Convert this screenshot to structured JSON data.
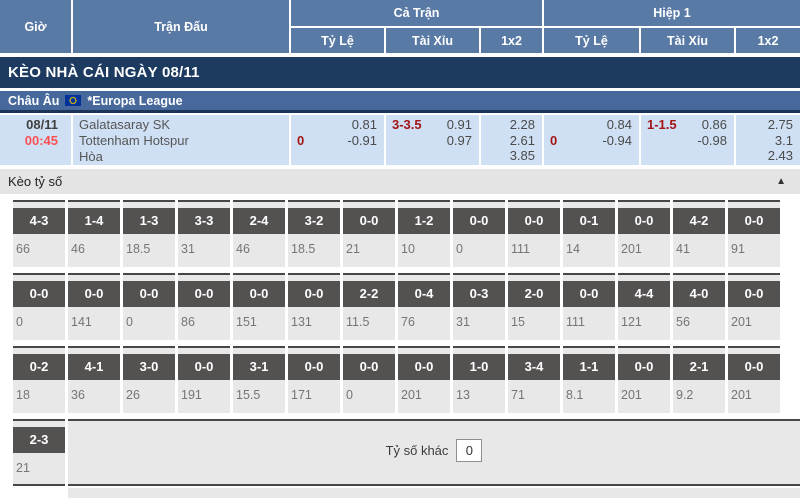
{
  "header": {
    "time": "Giờ",
    "match": "Trận Đấu",
    "full_match": "Cả Trận",
    "first_half": "Hiệp 1",
    "handicap": "Tỷ Lệ",
    "over_under": "Tài Xỉu",
    "one_x_two": "1x2"
  },
  "banner": {
    "title": "KÈO NHÀ CÁI NGÀY 08/11"
  },
  "league": {
    "region": "Châu Âu",
    "name": "*Europa League",
    "flag": "eu-flag-icon"
  },
  "match": {
    "date": "08/11",
    "time": "00:45",
    "home_team": "Galatasaray SK",
    "away_team": "Tottenham Hotspur",
    "draw_label": "Hòa",
    "full_time": {
      "handicap": {
        "line": "0",
        "home_odds": "0.81",
        "away_odds": "-0.91"
      },
      "over_under": {
        "line": "3-3.5",
        "over_odds": "0.91",
        "under_odds": "0.97"
      },
      "one_x_two": {
        "home": "2.28",
        "away": "2.61",
        "draw": "3.85"
      }
    },
    "first_half": {
      "handicap": {
        "line": "0",
        "home_odds": "0.84",
        "away_odds": "-0.94"
      },
      "over_under": {
        "line": "1-1.5",
        "over_odds": "0.86",
        "under_odds": "-0.98"
      },
      "one_x_two": {
        "home": "2.75",
        "away": "3.1",
        "draw": "2.43"
      }
    }
  },
  "score_section": {
    "title": "Kèo tỷ số",
    "other_label": "Tỷ số khác",
    "other_value": "0",
    "rows": [
      [
        {
          "score": "4-3",
          "odds": "66"
        },
        {
          "score": "1-4",
          "odds": "46"
        },
        {
          "score": "1-3",
          "odds": "18.5"
        },
        {
          "score": "3-3",
          "odds": "31"
        },
        {
          "score": "2-4",
          "odds": "46"
        },
        {
          "score": "3-2",
          "odds": "18.5"
        },
        {
          "score": "0-0",
          "odds": "21"
        },
        {
          "score": "1-2",
          "odds": "10"
        },
        {
          "score": "0-0",
          "odds": "0"
        },
        {
          "score": "0-0",
          "odds": "111"
        },
        {
          "score": "0-1",
          "odds": "14"
        },
        {
          "score": "0-0",
          "odds": "201"
        },
        {
          "score": "4-2",
          "odds": "41"
        },
        {
          "score": "0-0",
          "odds": "91"
        }
      ],
      [
        {
          "score": "0-0",
          "odds": "0"
        },
        {
          "score": "0-0",
          "odds": "141"
        },
        {
          "score": "0-0",
          "odds": "0"
        },
        {
          "score": "0-0",
          "odds": "86"
        },
        {
          "score": "0-0",
          "odds": "151"
        },
        {
          "score": "0-0",
          "odds": "131"
        },
        {
          "score": "2-2",
          "odds": "11.5"
        },
        {
          "score": "0-4",
          "odds": "76"
        },
        {
          "score": "0-3",
          "odds": "31"
        },
        {
          "score": "2-0",
          "odds": "15"
        },
        {
          "score": "0-0",
          "odds": "111"
        },
        {
          "score": "4-4",
          "odds": "121"
        },
        {
          "score": "4-0",
          "odds": "56"
        },
        {
          "score": "0-0",
          "odds": "201"
        }
      ],
      [
        {
          "score": "0-2",
          "odds": "18"
        },
        {
          "score": "4-1",
          "odds": "36"
        },
        {
          "score": "3-0",
          "odds": "26"
        },
        {
          "score": "0-0",
          "odds": "191"
        },
        {
          "score": "3-1",
          "odds": "15.5"
        },
        {
          "score": "0-0",
          "odds": "171"
        },
        {
          "score": "0-0",
          "odds": "0"
        },
        {
          "score": "0-0",
          "odds": "201"
        },
        {
          "score": "1-0",
          "odds": "13"
        },
        {
          "score": "3-4",
          "odds": "71"
        },
        {
          "score": "1-1",
          "odds": "8.1"
        },
        {
          "score": "0-0",
          "odds": "201"
        },
        {
          "score": "2-1",
          "odds": "9.2"
        },
        {
          "score": "0-0",
          "odds": "201"
        }
      ],
      [
        {
          "score": "2-3",
          "odds": "21"
        }
      ]
    ]
  },
  "icons": {
    "collapse_glyph": "▲"
  },
  "colors": {
    "header_blue": "#5a7aa6",
    "banner_navy": "#1d3a60",
    "league_blue": "#46689b",
    "navy_border": "#1b3457",
    "row_blue": "#cfe0f4",
    "red_line": "#a31515",
    "red_time": "#fb5151",
    "text_dark": "#3f3f3f",
    "text_gray": "#565656",
    "odds_text": "#4a4a4a",
    "box_gray": "#545151",
    "cell_gray": "#e9e8e8",
    "cell_border": "#474747",
    "section_header_bg": "#e5e4e4",
    "odds_value_gray": "#757575"
  }
}
